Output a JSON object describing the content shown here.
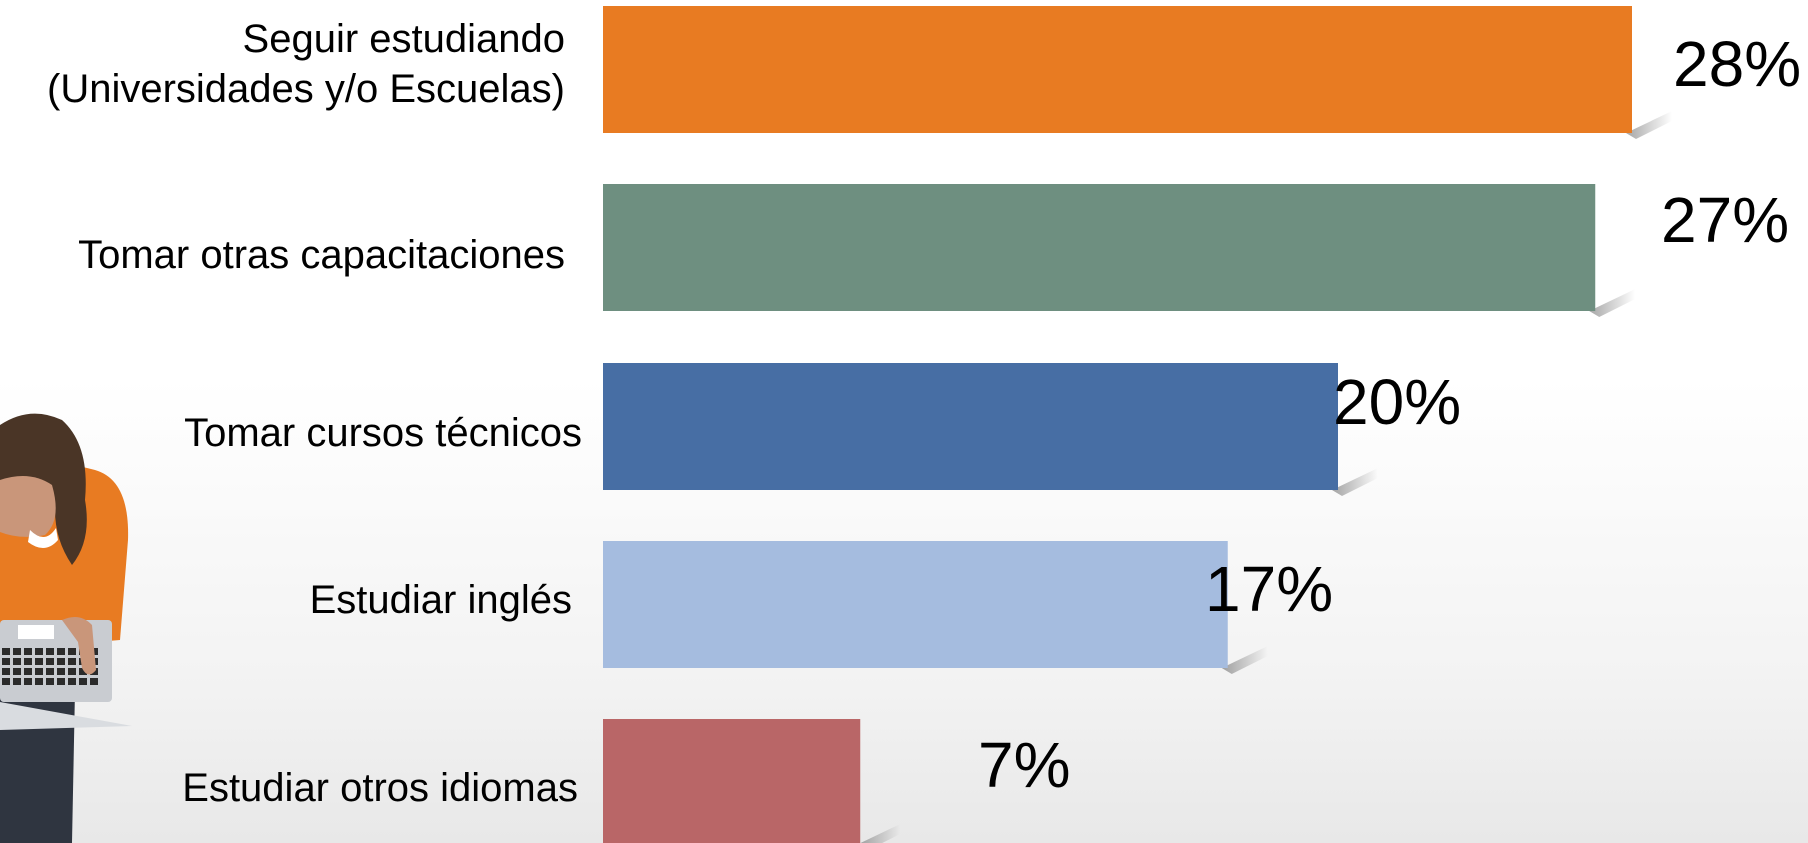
{
  "chart_data": {
    "type": "bar",
    "orientation": "horizontal",
    "categories": [
      [
        "Seguir estudiando",
        "(Universidades y/o Escuelas)"
      ],
      [
        "Tomar otras capacitaciones"
      ],
      [
        "Tomar cursos técnicos"
      ],
      [
        "Estudiar inglés"
      ],
      [
        "Estudiar otros idiomas"
      ]
    ],
    "values": [
      28,
      27,
      20,
      17,
      7
    ],
    "value_labels": [
      "28%",
      "27%",
      "20%",
      "17%",
      "7%"
    ],
    "colors": [
      "#E87B22",
      "#6E8F80",
      "#476EA4",
      "#A5BCDF",
      "#B96667"
    ],
    "xlim": [
      0,
      28
    ],
    "grid": false,
    "legend": "none"
  },
  "illustration": {
    "subject": "woman-with-laptop",
    "colors": {
      "hair": "#4A3526",
      "skin": "#C9967A",
      "sweater": "#E87B22",
      "laptop": "#C9CCD1",
      "pants": "#2F3540"
    }
  }
}
